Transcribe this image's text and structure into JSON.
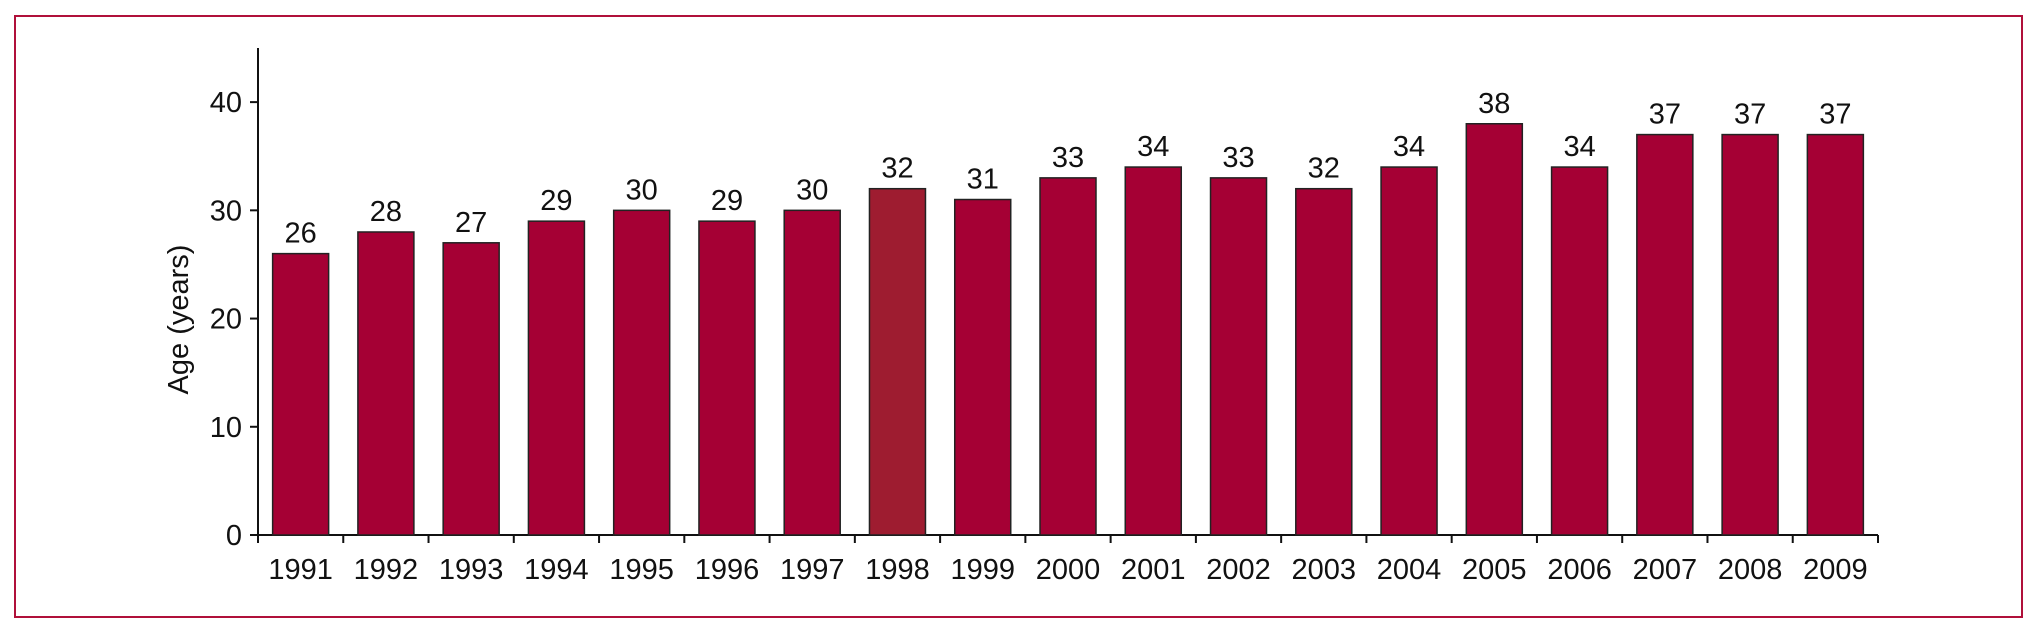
{
  "chart_data": {
    "type": "bar",
    "categories": [
      "1991",
      "1992",
      "1993",
      "1994",
      "1995",
      "1996",
      "1997",
      "1998",
      "1999",
      "2000",
      "2001",
      "2002",
      "2003",
      "2004",
      "2005",
      "2006",
      "2007",
      "2008",
      "2009"
    ],
    "values": [
      26,
      28,
      27,
      29,
      30,
      29,
      30,
      32,
      31,
      33,
      34,
      33,
      32,
      34,
      38,
      34,
      37,
      37,
      37
    ],
    "value_labels": [
      "26",
      "28",
      "27",
      "29",
      "30",
      "29",
      "30",
      "32",
      "31",
      "33",
      "34",
      "33",
      "32",
      "34",
      "38",
      "34",
      "37",
      "37",
      "37"
    ],
    "xlabel": "",
    "ylabel": "Age (years)",
    "ylim": [
      0,
      45
    ],
    "yticks": [
      0,
      10,
      20,
      30,
      40
    ],
    "grid": false,
    "legend": "none",
    "highlight_index": 7,
    "colors": {
      "bar": "#a50034",
      "highlight_bar": "#9e1c30",
      "frame": "#b0103a",
      "axis": "#111111"
    }
  }
}
